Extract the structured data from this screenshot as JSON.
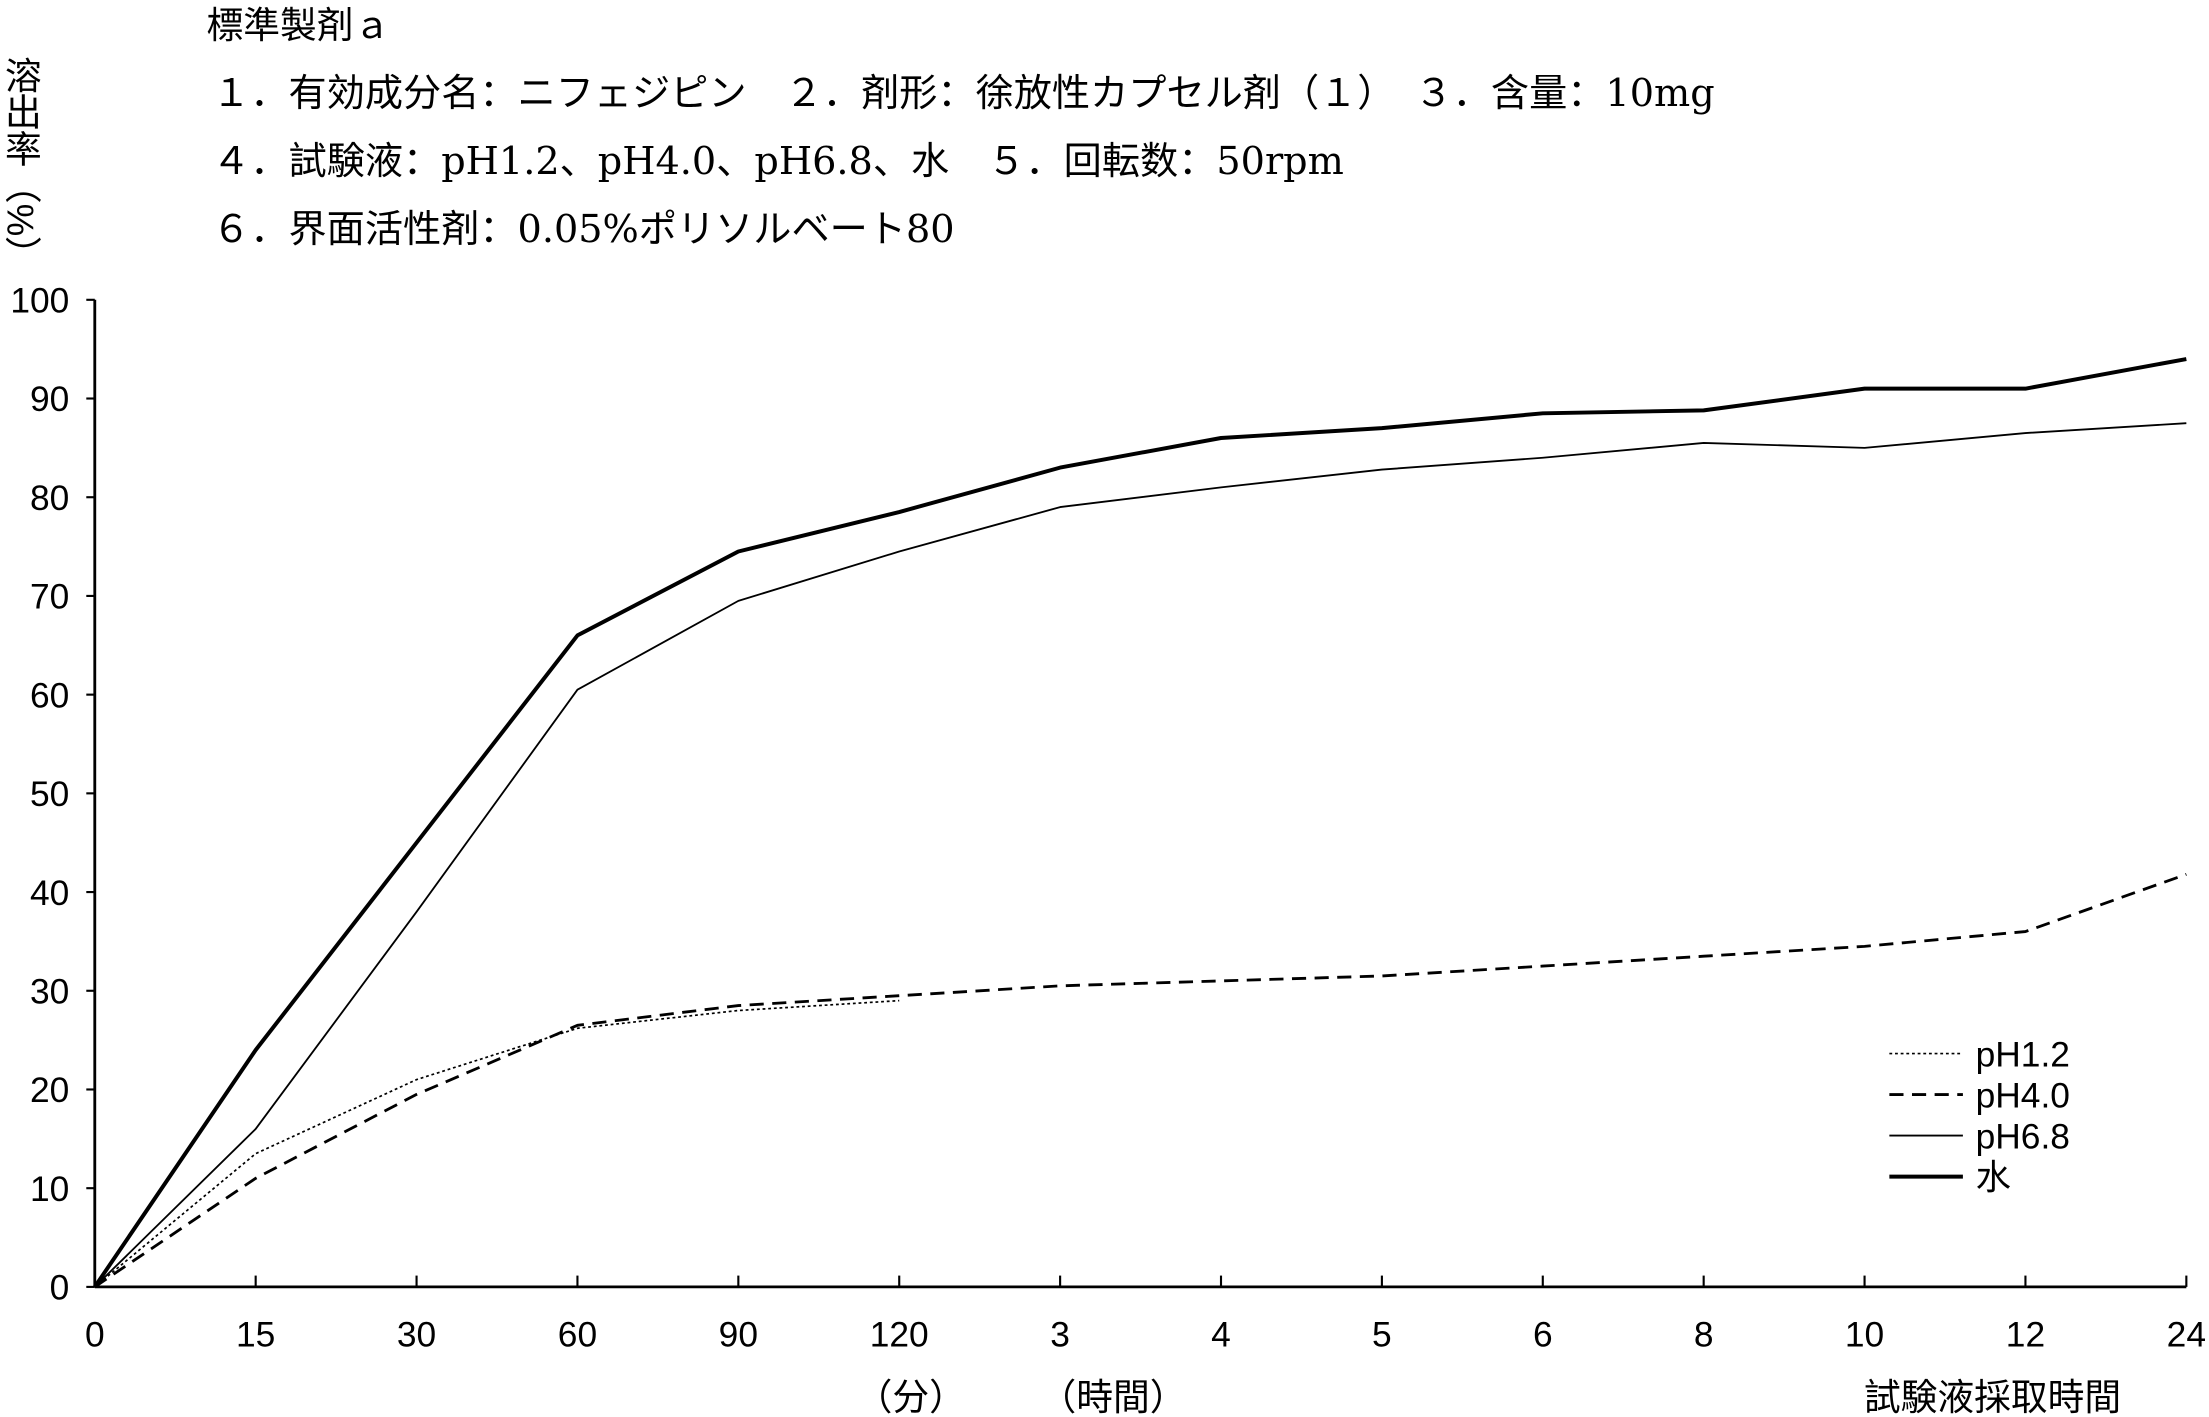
{
  "header": {
    "title": "標準製剤ａ",
    "lines": [
      "１．有効成分名：ニフェジピン　２．剤形：徐放性カプセル剤（１）　３．含量：10mg",
      "４．試験液：pH1.2、pH4.0、pH6.8、水　５．回転数：50rpm",
      "６．界面活性剤：0.05%ポリソルベート80"
    ]
  },
  "chart_data": {
    "type": "line",
    "title": "標準製剤ａ",
    "ylabel": "溶出率（%）",
    "xlabel": "試験液採取時間",
    "x_unit_labels": [
      "（分）",
      "（時間）"
    ],
    "categories": [
      "0",
      "15",
      "30",
      "60",
      "90",
      "120",
      "3",
      "4",
      "5",
      "6",
      "8",
      "10",
      "12",
      "24"
    ],
    "yticks": [
      0,
      10,
      20,
      30,
      40,
      50,
      60,
      70,
      80,
      90,
      100
    ],
    "ylim": [
      0,
      100
    ],
    "grid": false,
    "legend_position": "bottom-right",
    "series": [
      {
        "name": "pH1.2",
        "style": "dotted",
        "values": [
          0,
          13.5,
          21,
          26.2,
          28,
          29,
          null,
          null,
          null,
          null,
          null,
          null,
          null,
          null
        ]
      },
      {
        "name": "pH4.0",
        "style": "dashed",
        "values": [
          0,
          11,
          19.5,
          26.5,
          28.5,
          29.5,
          30.5,
          31,
          31.5,
          32.5,
          33.5,
          34.5,
          36,
          41.8
        ]
      },
      {
        "name": "pH6.8",
        "style": "thin",
        "values": [
          0,
          16,
          38,
          60.5,
          69.5,
          74.5,
          79,
          81,
          82.8,
          84,
          85.5,
          85,
          86.5,
          87.5
        ]
      },
      {
        "name": "水",
        "style": "thick",
        "values": [
          0,
          24,
          45,
          66,
          74.5,
          78.5,
          83,
          86,
          87,
          88.5,
          88.8,
          91,
          91,
          94
        ]
      }
    ]
  }
}
